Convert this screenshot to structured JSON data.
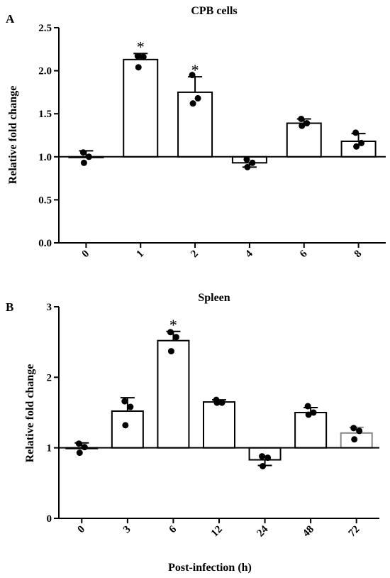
{
  "chart_data": [
    {
      "type": "bar",
      "panel": "A",
      "title": "CPB cells",
      "ylabel": "Relative fold change",
      "xlabel": "",
      "ylim": [
        0,
        2.5
      ],
      "yticks": [
        "0.0",
        "0.5",
        "1.0",
        "1.5",
        "2.0",
        "2.5"
      ],
      "baseline": 1.0,
      "categories": [
        "0",
        "1",
        "2",
        "4",
        "6",
        "8"
      ],
      "values": [
        1.0,
        2.13,
        1.75,
        0.93,
        1.39,
        1.18
      ],
      "errors": [
        0.07,
        0.07,
        0.18,
        0.05,
        0.05,
        0.09
      ],
      "points": [
        [
          1.05,
          1.0,
          0.93
        ],
        [
          2.17,
          2.16,
          2.04
        ],
        [
          1.95,
          1.68,
          1.62
        ],
        [
          0.97,
          0.93,
          0.88
        ],
        [
          1.44,
          1.39,
          1.36
        ],
        [
          1.28,
          1.16,
          1.12
        ]
      ],
      "significance": [
        "",
        "*",
        "*",
        "",
        "",
        ""
      ]
    },
    {
      "type": "bar",
      "panel": "B",
      "title": "Spleen",
      "ylabel": "Relative fold change",
      "xlabel": "Post-infection (h)",
      "ylim": [
        0,
        3
      ],
      "yticks": [
        "0",
        "1",
        "2",
        "3"
      ],
      "baseline": 1.0,
      "categories": [
        "0",
        "3",
        "6",
        "12",
        "24",
        "48",
        "72"
      ],
      "values": [
        1.0,
        1.52,
        2.52,
        1.65,
        0.83,
        1.5,
        1.21
      ],
      "errors": [
        0.07,
        0.19,
        0.13,
        0.03,
        0.08,
        0.07,
        0.08
      ],
      "points": [
        [
          1.06,
          1.01,
          0.93
        ],
        [
          1.66,
          1.58,
          1.32
        ],
        [
          2.64,
          2.57,
          2.37
        ],
        [
          1.68,
          1.64,
          1.64
        ],
        [
          0.88,
          0.86,
          0.74
        ],
        [
          1.59,
          1.5,
          1.47
        ],
        [
          1.28,
          1.24,
          1.12
        ]
      ],
      "significance": [
        "",
        "",
        "*",
        "",
        "",
        "",
        ""
      ],
      "last_bar_color": "#888888"
    }
  ],
  "colors": {
    "ink": "#000000",
    "bar_fill": "#ffffff",
    "gray_bar": "#888888"
  }
}
